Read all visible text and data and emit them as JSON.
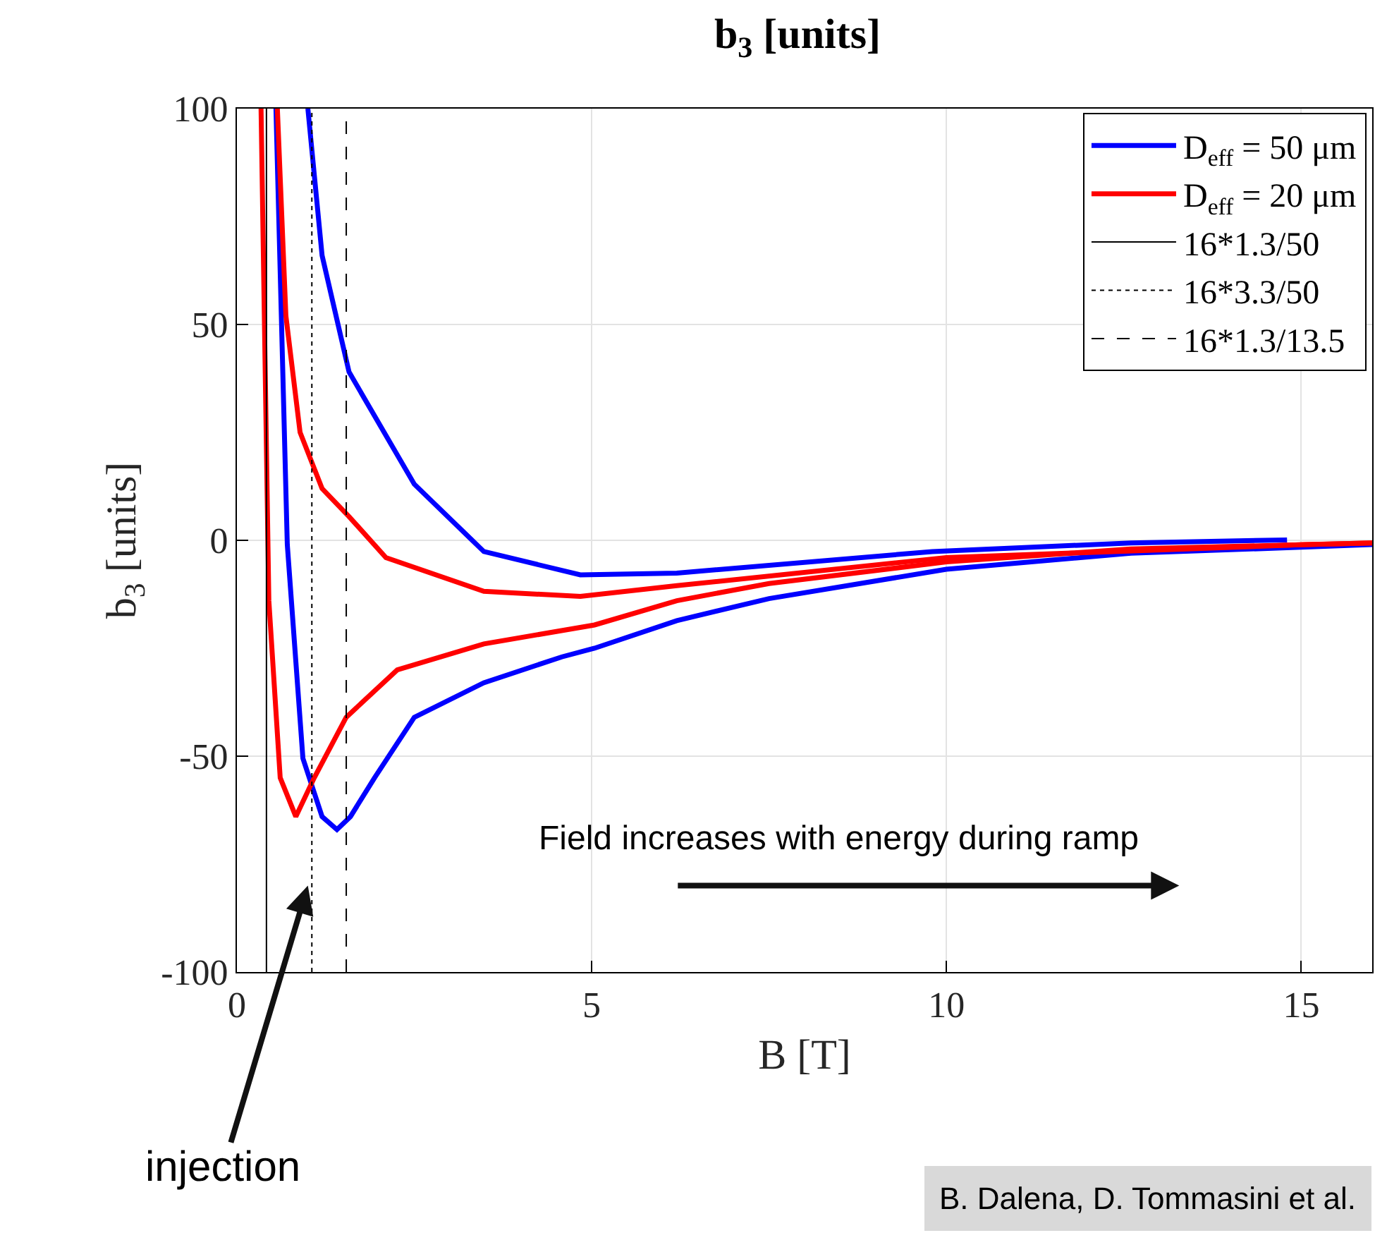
{
  "chart_data": {
    "type": "line",
    "title": "b$_{3}$ [units]",
    "xlabel": "B [T]",
    "ylabel": "b$_{3}$ [units]",
    "xlim": [
      0,
      16
    ],
    "ylim": [
      -100,
      100
    ],
    "xticks": [
      0,
      5,
      10,
      15
    ],
    "yticks": [
      -100,
      -50,
      0,
      50,
      100
    ],
    "grid": true,
    "legend": "top right",
    "series": [
      {
        "name": "D$_{eff}$ = 50 μm",
        "color": "#0000ff",
        "x": [
          0.55,
          0.71,
          0.93,
          1.2,
          1.41,
          1.6,
          1.94,
          2.5,
          3.48,
          4.58,
          5.04,
          6.2,
          7.5,
          10,
          12.6,
          16,
          null,
          14.8,
          12.6,
          9.8,
          6.2,
          4.84,
          3.48,
          2.5,
          1.58,
          1.2,
          1.0
        ],
        "values": [
          100,
          -1,
          -50.5,
          -64,
          -67,
          -64,
          -55,
          -41,
          -33,
          -27,
          -25,
          -18.6,
          -13.5,
          -6.7,
          -3,
          -1,
          null,
          0.1,
          -0.6,
          -2.6,
          -7.6,
          -8,
          -2.6,
          13,
          39,
          66,
          100
        ]
      },
      {
        "name": "D$_{eff}$ = 20 μm",
        "color": "#ff0000",
        "x": [
          0.34,
          0.45,
          0.61,
          0.83,
          1.09,
          1.54,
          2.26,
          3.48,
          5.04,
          6.2,
          7.5,
          10,
          12.6,
          16,
          null,
          16,
          15.04,
          10,
          6.2,
          4.84,
          3.48,
          2.1,
          1.58,
          1.2,
          0.89,
          0.69,
          0.57
        ],
        "values": [
          100,
          -14,
          -55,
          -64,
          -55,
          -41,
          -30,
          -24,
          -19.6,
          -14,
          -10,
          -5,
          -2,
          -0.6,
          null,
          -0.6,
          -1,
          -4,
          -10.5,
          -13,
          -11.8,
          -4,
          5.5,
          12,
          25,
          52,
          100
        ]
      },
      {
        "name": "16*1.3/50",
        "color": "#000000",
        "line_style": "solid",
        "x": [
          0.416,
          0.416
        ],
        "values": [
          -100,
          100
        ]
      },
      {
        "name": "16*3.3/50",
        "color": "#000000",
        "line_style": "dotted",
        "x": [
          1.056,
          1.056
        ],
        "values": [
          -100,
          100
        ]
      },
      {
        "name": "16*1.3/13.5",
        "color": "#000000",
        "line_style": "dashed",
        "x": [
          1.541,
          1.541
        ],
        "values": [
          -100,
          100
        ]
      }
    ],
    "annotations": [
      "Field increases with energy during ramp",
      {
        "text": "injection",
        "x": 1.0,
        "y": -80
      },
      "B. Dalena, D. Tommasini et al."
    ]
  }
}
